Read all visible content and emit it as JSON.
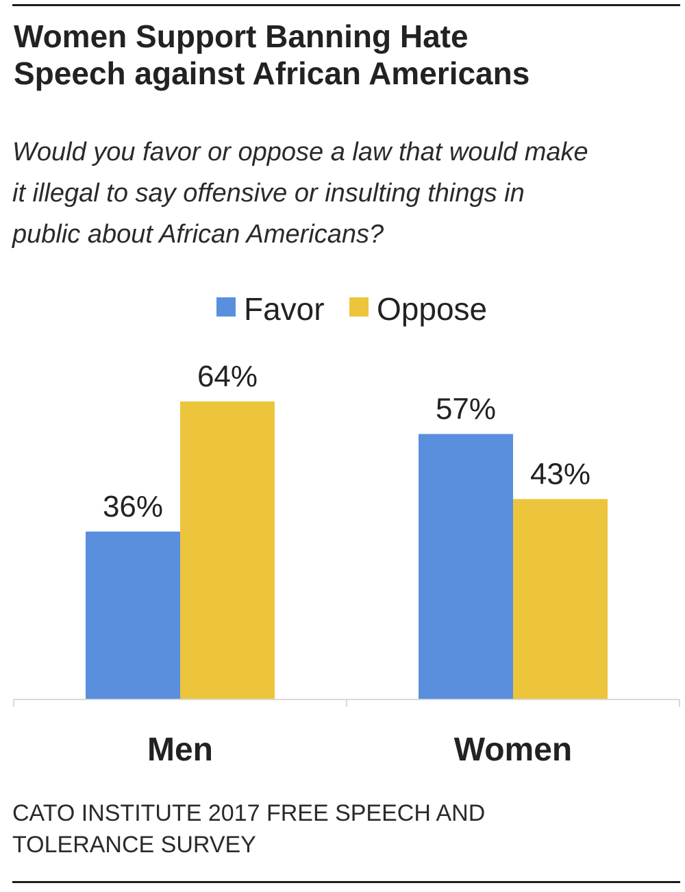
{
  "header": {
    "title_line1": "Women Support Banning Hate",
    "title_line2": "Speech against African Americans",
    "subtitle_line1": "Would you favor or oppose a law that would make",
    "subtitle_line2": "it illegal to say offensive or insulting things in",
    "subtitle_line3": "public about African Americans?"
  },
  "source": {
    "line1": "CATO INSTITUTE 2017 FREE SPEECH AND",
    "line2": "TOLERANCE SURVEY"
  },
  "chart_data": {
    "type": "bar",
    "categories": [
      "Men",
      "Women"
    ],
    "series": [
      {
        "name": "Favor",
        "values": [
          36,
          57
        ],
        "labels": [
          "36%",
          "57%"
        ],
        "color": "#5a8fdd"
      },
      {
        "name": "Oppose",
        "values": [
          64,
          43
        ],
        "labels": [
          "64%",
          "43%"
        ],
        "color": "#ecc53d"
      }
    ],
    "ylim": [
      0,
      64
    ],
    "legend_position": "top-center",
    "grid": false
  }
}
